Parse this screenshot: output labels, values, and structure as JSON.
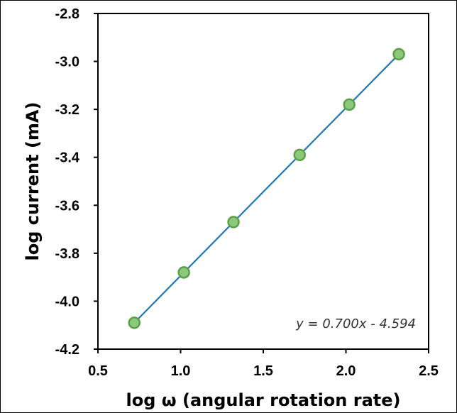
{
  "chart_data": {
    "type": "scatter",
    "title": "",
    "xlabel": "log ω (angular rotation rate)",
    "ylabel": "log current (mA)",
    "xlim": [
      0.5,
      2.5
    ],
    "ylim": [
      -4.2,
      -2.8
    ],
    "x_ticks": [
      "0.5",
      "1.0",
      "1.5",
      "2.0",
      "2.5"
    ],
    "y_ticks": [
      "-2.8",
      "-3.0",
      "-3.2",
      "-3.4",
      "-3.6",
      "-3.8",
      "-4.0",
      "-4.2"
    ],
    "grid": false,
    "legend": "none",
    "series": [
      {
        "x": [
          0.72,
          1.02,
          1.32,
          1.72,
          2.02,
          2.32
        ],
        "y": [
          -4.09,
          -3.88,
          -3.67,
          -3.39,
          -3.18,
          -2.97
        ],
        "marker_fill": "#8cc97a",
        "marker_edge": "#5aa046"
      }
    ],
    "trendline": {
      "slope": 0.7,
      "intercept": -4.594,
      "x_range": [
        0.72,
        2.32
      ],
      "color": "#1f77b4",
      "equation_label": "y = 0.700x - 4.594"
    }
  }
}
